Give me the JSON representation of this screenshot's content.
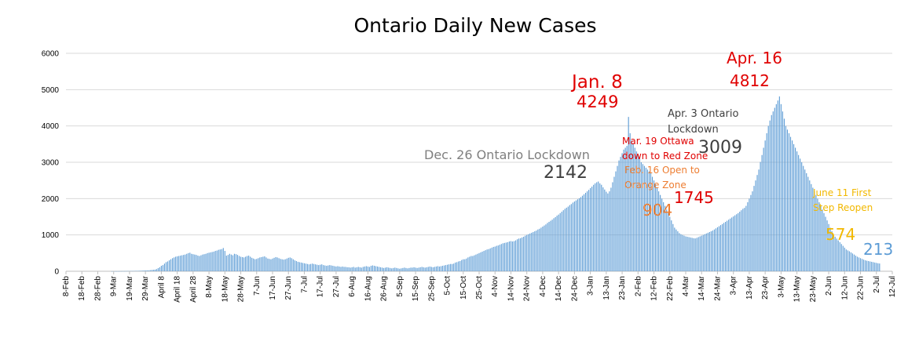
{
  "chart_data": {
    "type": "bar",
    "title": "Ontario Daily New Cases",
    "xlabel": "",
    "ylabel": "",
    "ylim": [
      0,
      6000
    ],
    "grid": true,
    "legend": "none",
    "y_ticks": [
      0,
      1000,
      2000,
      3000,
      4000,
      5000,
      6000
    ],
    "x_tick_labels": [
      "8-Feb",
      "18-Feb",
      "28-Feb",
      "9-Mar",
      "19-Mar",
      "29-Mar",
      "April 8",
      "April 18",
      "April 28",
      "8-May",
      "18-May",
      "28-May",
      "7-Jun",
      "17-Jun",
      "27-Jun",
      "7-Jul",
      "17-Jul",
      "27-Jul",
      "6-Aug",
      "16-Aug",
      "26-Aug",
      "5-Sep",
      "15-Sep",
      "25-Sep",
      "5-Oct",
      "15-Oct",
      "25-Oct",
      "4-Nov",
      "14-Nov",
      "24-Nov",
      "4-Dec",
      "14-Dec",
      "24-Dec",
      "3-Jan",
      "13-Jan",
      "23-Jan",
      "2-Feb",
      "12-Feb",
      "22-Feb",
      "4-Mar",
      "14-Mar",
      "24-Mar",
      "3-Apr",
      "13-Apr",
      "23-Apr",
      "3-May",
      "13-May",
      "23-May",
      "2-Jun",
      "12-Jun",
      "22-Jun",
      "2-Jul",
      "12-Jul"
    ],
    "x_start": "2020-02-08",
    "x_end": "2021-07-12",
    "series": [
      {
        "values": [
          0,
          0,
          0,
          0,
          0,
          0,
          0,
          0,
          0,
          0,
          0,
          0,
          0,
          0,
          0,
          0,
          0,
          0,
          0,
          0,
          1,
          1,
          2,
          2,
          3,
          4,
          4,
          5,
          5,
          6,
          8,
          7,
          9,
          8,
          10,
          12,
          12,
          14,
          15,
          17,
          20,
          22,
          24,
          24,
          30,
          35,
          40,
          45,
          60,
          85,
          110,
          150,
          170,
          210,
          250,
          270,
          300,
          330,
          360,
          380,
          400,
          410,
          420,
          430,
          440,
          450,
          460,
          480,
          500,
          510,
          480,
          470,
          460,
          450,
          430,
          420,
          440,
          460,
          470,
          480,
          500,
          510,
          520,
          530,
          540,
          560,
          570,
          590,
          600,
          610,
          640,
          560,
          430,
          450,
          480,
          460,
          440,
          480,
          470,
          450,
          420,
          400,
          390,
          380,
          400,
          420,
          430,
          400,
          370,
          350,
          330,
          340,
          360,
          380,
          390,
          400,
          410,
          380,
          350,
          340,
          330,
          350,
          370,
          390,
          380,
          360,
          340,
          330,
          320,
          330,
          350,
          370,
          380,
          360,
          330,
          300,
          280,
          260,
          250,
          240,
          230,
          220,
          210,
          200,
          190,
          200,
          210,
          200,
          190,
          180,
          170,
          180,
          190,
          170,
          160,
          150,
          160,
          170,
          160,
          150,
          140,
          130,
          140,
          130,
          120,
          130,
          120,
          120,
          110,
          110,
          100,
          110,
          120,
          100,
          110,
          120,
          110,
          100,
          120,
          130,
          140,
          130,
          120,
          150,
          160,
          150,
          140,
          130,
          120,
          110,
          100,
          90,
          100,
          110,
          100,
          90,
          80,
          90,
          100,
          90,
          80,
          70,
          80,
          90,
          100,
          90,
          80,
          90,
          100,
          100,
          110,
          100,
          90,
          100,
          110,
          120,
          110,
          100,
          110,
          120,
          130,
          120,
          110,
          120,
          130,
          140,
          130,
          140,
          150,
          160,
          170,
          180,
          190,
          200,
          200,
          210,
          240,
          250,
          270,
          280,
          310,
          330,
          330,
          350,
          380,
          400,
          420,
          420,
          440,
          460,
          480,
          500,
          520,
          540,
          560,
          580,
          600,
          610,
          630,
          650,
          670,
          680,
          700,
          710,
          730,
          750,
          770,
          780,
          790,
          800,
          820,
          830,
          820,
          830,
          850,
          880,
          900,
          910,
          930,
          950,
          980,
          1000,
          1020,
          1040,
          1060,
          1080,
          1100,
          1120,
          1150,
          1170,
          1200,
          1230,
          1260,
          1290,
          1330,
          1360,
          1390,
          1420,
          1460,
          1490,
          1530,
          1560,
          1600,
          1640,
          1680,
          1720,
          1750,
          1780,
          1820,
          1850,
          1890,
          1920,
          1950,
          1980,
          2010,
          2040,
          2080,
          2120,
          2160,
          2200,
          2240,
          2290,
          2330,
          2380,
          2420,
          2450,
          2470,
          2420,
          2380,
          2310,
          2250,
          2190,
          2142,
          2200,
          2300,
          2450,
          2600,
          2750,
          2900,
          3050,
          3150,
          3250,
          3350,
          3400,
          3450,
          4249,
          3800,
          3600,
          3500,
          3400,
          3300,
          3200,
          3100,
          3000,
          2950,
          2900,
          2850,
          2800,
          2750,
          2700,
          2600,
          2500,
          2400,
          2300,
          2200,
          2100,
          2000,
          1900,
          1800,
          1700,
          1600,
          1500,
          1400,
          1300,
          1200,
          1150,
          1100,
          1050,
          1020,
          1000,
          980,
          960,
          950,
          940,
          930,
          920,
          910,
          904,
          920,
          940,
          960,
          980,
          1000,
          1020,
          1040,
          1060,
          1080,
          1100,
          1120,
          1150,
          1180,
          1210,
          1240,
          1270,
          1300,
          1330,
          1360,
          1390,
          1420,
          1450,
          1480,
          1510,
          1540,
          1570,
          1600,
          1640,
          1680,
          1720,
          1745,
          1800,
          1900,
          2000,
          2100,
          2200,
          2350,
          2500,
          2650,
          2800,
          3009,
          3200,
          3400,
          3600,
          3800,
          4000,
          4150,
          4300,
          4400,
          4500,
          4600,
          4700,
          4812,
          4600,
          4400,
          4200,
          4000,
          3900,
          3800,
          3700,
          3600,
          3500,
          3400,
          3300,
          3200,
          3100,
          3000,
          2900,
          2800,
          2700,
          2600,
          2500,
          2400,
          2300,
          2200,
          2100,
          2000,
          1900,
          1800,
          1700,
          1600,
          1500,
          1400,
          1300,
          1200,
          1100,
          1000,
          950,
          900,
          850,
          800,
          750,
          700,
          650,
          600,
          574,
          550,
          520,
          490,
          460,
          430,
          400,
          380,
          360,
          340,
          320,
          300,
          290,
          280,
          270,
          260,
          250,
          240,
          230,
          220,
          213
        ]
      }
    ],
    "annotations": [
      {
        "text": "Dec. 26 Ontario Lockdown",
        "color": "#7f7f7f"
      },
      {
        "text": "2142",
        "color": "#404040"
      },
      {
        "text": "Jan. 8",
        "color": "#e00000"
      },
      {
        "text": "4249",
        "color": "#e00000"
      },
      {
        "text": "Apr. 3 Ontario",
        "color": "#404040"
      },
      {
        "text": "Lockdown",
        "color": "#404040"
      },
      {
        "text": "3009",
        "color": "#404040"
      },
      {
        "text": "Mar. 19 Ottawa",
        "color": "#e00000"
      },
      {
        "text": "down to Red Zone",
        "color": "#e00000"
      },
      {
        "text": "Feb. 16 Open to",
        "color": "#ed7d31"
      },
      {
        "text": "Orange Zone",
        "color": "#ed7d31"
      },
      {
        "text": "904",
        "color": "#ed7d31"
      },
      {
        "text": "1745",
        "color": "#e00000"
      },
      {
        "text": "Apr. 16",
        "color": "#e00000"
      },
      {
        "text": "4812",
        "color": "#e00000"
      },
      {
        "text": "June 11 First",
        "color": "#f2b800"
      },
      {
        "text": "Step Reopen",
        "color": "#f2b800"
      },
      {
        "text": "574",
        "color": "#f2b800"
      },
      {
        "text": "213",
        "color": "#5b9bd5"
      }
    ],
    "colors": {
      "bars": "#5b9bd5",
      "highlight": "#c00000",
      "grid": "#d9d9d9",
      "axis": "#bfbfbf"
    }
  }
}
